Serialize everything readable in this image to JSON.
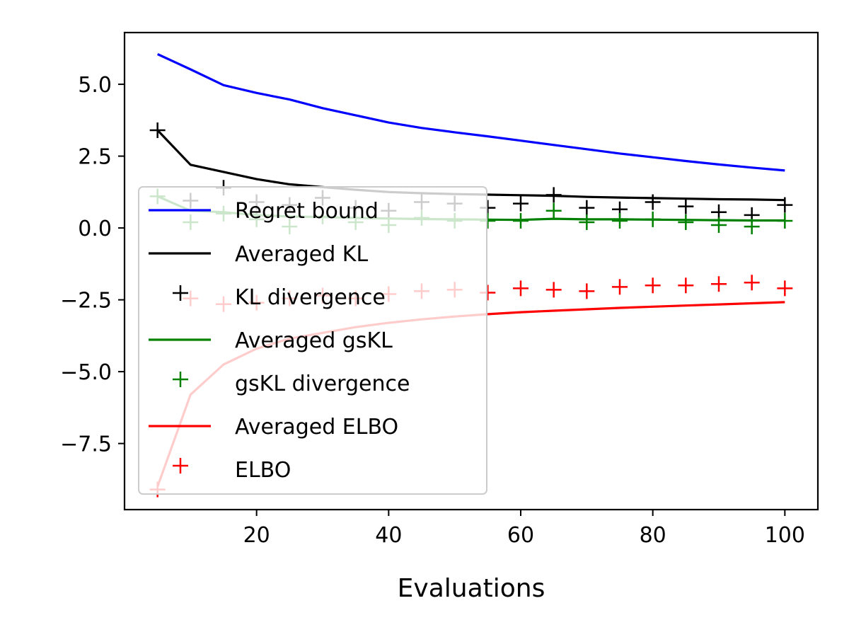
{
  "chart_data": {
    "type": "line",
    "title": "",
    "xlabel": "Evaluations",
    "ylabel": "",
    "xlim": [
      0,
      105
    ],
    "ylim": [
      -9.8,
      6.8
    ],
    "x_ticks": [
      20,
      40,
      60,
      80,
      100
    ],
    "y_ticks": [
      5.0,
      2.5,
      0.0,
      -2.5,
      -5.0,
      -7.5
    ],
    "x_tick_labels": [
      "20",
      "40",
      "60",
      "80",
      "100"
    ],
    "y_tick_labels": [
      "5.0",
      "2.5",
      "0.0",
      "−2.5",
      "−5.0",
      "−7.5"
    ],
    "grid": false,
    "legend_position": "lower-left",
    "x": [
      5,
      10,
      15,
      20,
      25,
      30,
      35,
      40,
      45,
      50,
      55,
      60,
      65,
      70,
      75,
      80,
      85,
      90,
      95,
      100
    ],
    "series": [
      {
        "name": "Regret bound",
        "kind": "line",
        "color": "#0000ff",
        "values": [
          6.05,
          5.52,
          4.97,
          4.7,
          4.47,
          4.17,
          3.92,
          3.67,
          3.48,
          3.33,
          3.19,
          3.04,
          2.89,
          2.74,
          2.59,
          2.46,
          2.33,
          2.21,
          2.1,
          2.0
        ]
      },
      {
        "name": "Averaged KL",
        "kind": "line",
        "color": "#000000",
        "values": [
          3.4,
          2.2,
          1.95,
          1.7,
          1.52,
          1.42,
          1.33,
          1.25,
          1.21,
          1.18,
          1.16,
          1.14,
          1.12,
          1.08,
          1.06,
          1.04,
          1.02,
          1.0,
          0.99,
          0.97
        ]
      },
      {
        "name": "KL divergence",
        "kind": "scatter",
        "marker": "+",
        "color": "#000000",
        "values": [
          3.4,
          0.95,
          1.4,
          0.9,
          0.8,
          1.05,
          0.7,
          0.6,
          0.9,
          0.85,
          0.7,
          0.85,
          1.15,
          0.7,
          0.65,
          0.9,
          0.75,
          0.55,
          0.45,
          0.8
        ]
      },
      {
        "name": "Averaged gsKL",
        "kind": "line",
        "color": "#008000",
        "values": [
          1.1,
          0.6,
          0.55,
          0.45,
          0.4,
          0.38,
          0.35,
          0.33,
          0.31,
          0.3,
          0.29,
          0.28,
          0.32,
          0.3,
          0.3,
          0.29,
          0.28,
          0.27,
          0.26,
          0.26
        ]
      },
      {
        "name": "gsKL divergence",
        "kind": "scatter",
        "marker": "+",
        "color": "#008000",
        "values": [
          1.1,
          0.2,
          0.5,
          0.3,
          0.05,
          0.4,
          0.2,
          0.1,
          0.35,
          0.25,
          0.25,
          0.25,
          0.6,
          0.2,
          0.25,
          0.3,
          0.2,
          0.1,
          0.05,
          0.25
        ]
      },
      {
        "name": "Averaged ELBO",
        "kind": "line",
        "color": "#ff0000",
        "values": [
          -9.0,
          -5.8,
          -4.75,
          -4.2,
          -3.85,
          -3.65,
          -3.45,
          -3.3,
          -3.18,
          -3.08,
          -3.0,
          -2.93,
          -2.88,
          -2.83,
          -2.78,
          -2.74,
          -2.7,
          -2.66,
          -2.62,
          -2.58
        ]
      },
      {
        "name": "ELBO",
        "kind": "scatter",
        "marker": "+",
        "color": "#ff0000",
        "values": [
          -9.1,
          -2.45,
          -2.65,
          -2.6,
          -2.45,
          -2.35,
          -2.45,
          -2.3,
          -2.2,
          -2.15,
          -2.25,
          -2.1,
          -2.15,
          -2.2,
          -2.05,
          -2.0,
          -2.0,
          -1.95,
          -1.9,
          -2.1
        ]
      }
    ]
  }
}
